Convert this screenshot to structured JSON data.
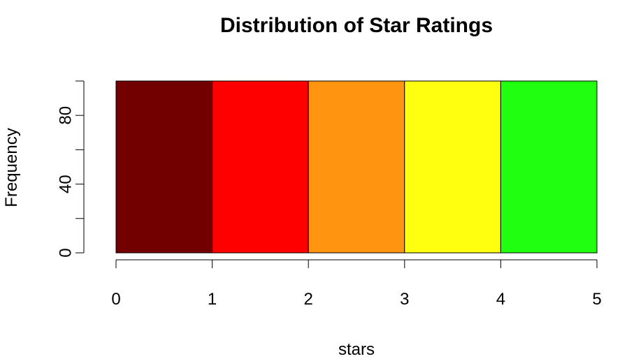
{
  "chart_data": {
    "type": "bar",
    "title": "Distribution of Star Ratings",
    "xlabel": "stars",
    "ylabel": "Frequency",
    "bins": [
      {
        "from": 0,
        "to": 1,
        "value": 100,
        "color": "#730000"
      },
      {
        "from": 1,
        "to": 2,
        "value": 100,
        "color": "#ff0000"
      },
      {
        "from": 2,
        "to": 3,
        "value": 100,
        "color": "#ff9410"
      },
      {
        "from": 3,
        "to": 4,
        "value": 100,
        "color": "#ffff10"
      },
      {
        "from": 4,
        "to": 5,
        "value": 100,
        "color": "#21ff10"
      }
    ],
    "xlim": [
      0,
      5
    ],
    "ylim": [
      0,
      100
    ],
    "x_ticks": [
      0,
      1,
      2,
      3,
      4,
      5
    ],
    "y_ticks": [
      0,
      20,
      40,
      60,
      80,
      100
    ],
    "y_tick_labels": [
      "0",
      "",
      "40",
      "",
      "80",
      ""
    ],
    "grid": false,
    "legend": "none"
  }
}
